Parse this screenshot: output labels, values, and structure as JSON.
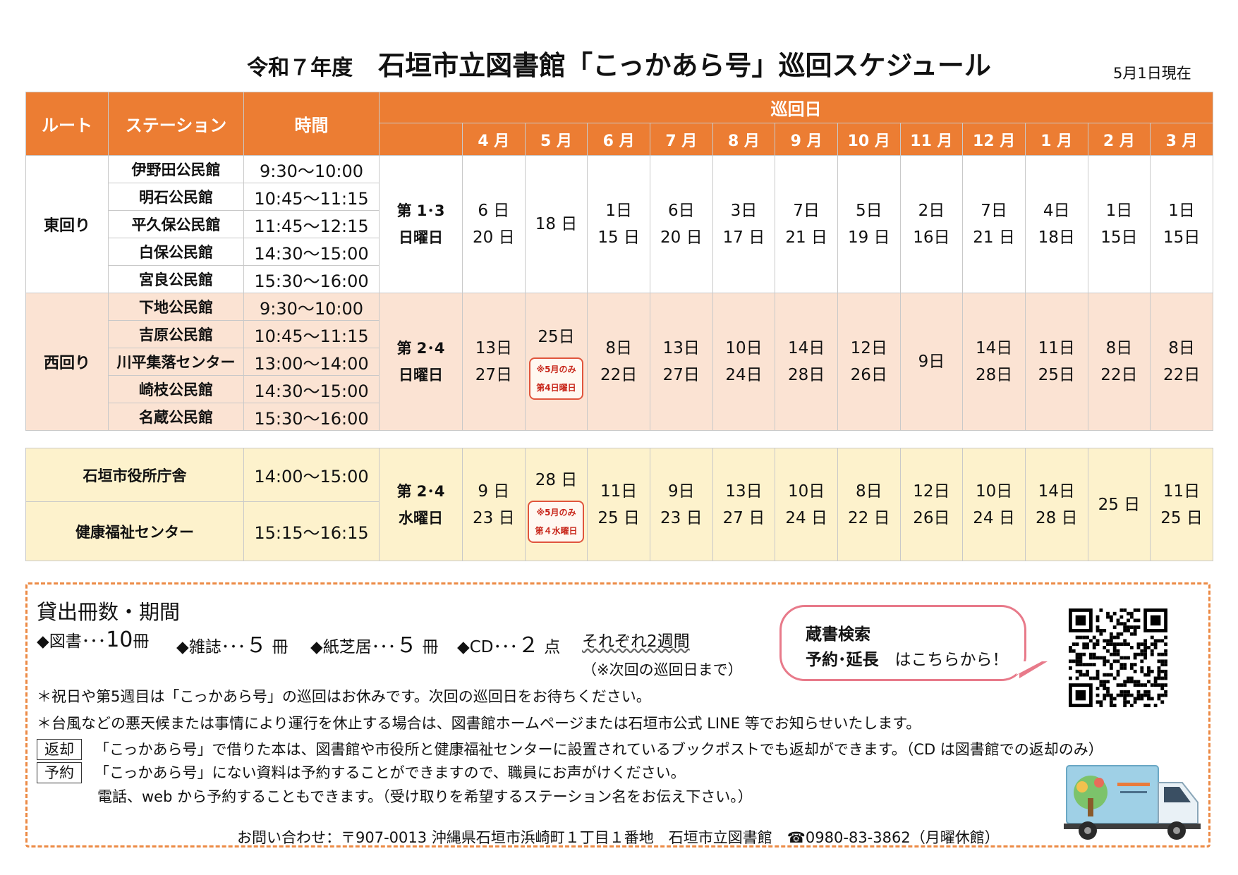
{
  "header": {
    "year": "令和７年度",
    "title": "石垣市立図書館「こっかあら号」巡回スケジュール",
    "as_of": "5月1日現在"
  },
  "table_header": {
    "route": "ルート",
    "station": "ステーション",
    "time": "時間",
    "visit_days": "巡回日",
    "months": [
      "4 月",
      "5 月",
      "6 月",
      "7 月",
      "8 月",
      "9 月",
      "10 月",
      "11 月",
      "12 月",
      "1 月",
      "2 月",
      "3 月"
    ]
  },
  "east": {
    "route": "東回り",
    "week": [
      "第 1･3",
      "日曜日"
    ],
    "stations": [
      {
        "name": "伊野田公民館",
        "time": "9:30～10:00"
      },
      {
        "name": "明石公民館",
        "time": "10:45～11:15"
      },
      {
        "name": "平久保公民館",
        "time": "11:45～12:15"
      },
      {
        "name": "白保公民館",
        "time": "14:30～15:00"
      },
      {
        "name": "宮良公民館",
        "time": "15:30～16:00"
      }
    ],
    "dates": [
      [
        "6 日",
        "20 日"
      ],
      [
        "18 日"
      ],
      [
        "1日",
        "15 日"
      ],
      [
        "6日",
        "20 日"
      ],
      [
        "3日",
        "17 日"
      ],
      [
        "7日",
        "21 日"
      ],
      [
        "5日",
        "19 日"
      ],
      [
        "2日",
        "16日"
      ],
      [
        "7日",
        "21 日"
      ],
      [
        "4日",
        "18日"
      ],
      [
        "1日",
        "15日"
      ],
      [
        "1日",
        "15日"
      ]
    ]
  },
  "west": {
    "route": "西回り",
    "week": [
      "第 2･4",
      "日曜日"
    ],
    "stations": [
      {
        "name": "下地公民館",
        "time": "9:30～10:00"
      },
      {
        "name": "吉原公民館",
        "time": "10:45～11:15"
      },
      {
        "name": "川平集落センター",
        "time": "13:00～14:00"
      },
      {
        "name": "崎枝公民館",
        "time": "14:30～15:00"
      },
      {
        "name": "名蔵公民館",
        "time": "15:30～16:00"
      }
    ],
    "dates": [
      [
        "13日",
        "27日"
      ],
      [
        "25日"
      ],
      [
        "8日",
        "22日"
      ],
      [
        "13日",
        "27日"
      ],
      [
        "10日",
        "24日"
      ],
      [
        "14日",
        "28日"
      ],
      [
        "12日",
        "26日"
      ],
      [
        "9日"
      ],
      [
        "14日",
        "28日"
      ],
      [
        "11日",
        "25日"
      ],
      [
        "8日",
        "22日"
      ],
      [
        "8日",
        "22日"
      ]
    ],
    "may_note": [
      "※5月のみ",
      "第4日曜日"
    ]
  },
  "office": {
    "week": [
      "第 2･4",
      "水曜日"
    ],
    "stations": [
      {
        "name": "石垣市役所庁舎",
        "time": "14:00～15:00"
      },
      {
        "name": "健康福祉センター",
        "time": "15:15～16:15"
      }
    ],
    "dates": [
      [
        "9 日",
        "23 日"
      ],
      [
        "28 日"
      ],
      [
        "11日",
        "25 日"
      ],
      [
        "9日",
        "23 日"
      ],
      [
        "13日",
        "27 日"
      ],
      [
        "10日",
        "24 日"
      ],
      [
        "8日",
        "22 日"
      ],
      [
        "12日",
        "26日"
      ],
      [
        "10日",
        "24 日"
      ],
      [
        "14日",
        "28 日"
      ],
      [
        "25 日"
      ],
      [
        "11日",
        "25 日"
      ]
    ],
    "may_note": [
      "※5月のみ",
      "第４水曜日"
    ]
  },
  "loan": {
    "title": "貸出冊数・期間",
    "books_label": "◆図書･･･",
    "books_value": "10",
    "books_unit": "冊",
    "magazines_label": "◆雑誌･･･",
    "magazines_value": "５",
    "magazines_unit": "冊",
    "kamishibai_label": "◆紙芝居･･･",
    "kamishibai_value": "５",
    "kamishibai_unit": "冊",
    "cd_label": "◆CD･･･",
    "cd_value": "２",
    "cd_unit": "点",
    "period": "それぞれ2週間",
    "period_note": "（※次回の巡回日まで）"
  },
  "notes": {
    "holiday": "＊祝日や第5週目は「こっかあら号」の巡回はお休みです。次回の巡回日をお待ちください。",
    "weather": "＊台風などの悪天候または事情により運行を休止する場合は、図書館ホームページまたは石垣市公式 LINE 等でお知らせいたします。",
    "return_label": "返却",
    "return_text": "「こっかあら号」で借りた本は、図書館や市役所と健康福祉センターに設置されているブックポストでも返却ができます。（CD は図書館での返却のみ）",
    "reserve_label": "予約",
    "reserve_text1": "「こっかあら号」にない資料は予約することができますので、職員にお声がけください。",
    "reserve_text2": "電話、web から予約することもできます。（受け取りを希望するステーション名をお伝え下さい。）",
    "contact": "お問い合わせ：〒907-0013 沖縄県石垣市浜崎町１丁目１番地　石垣市立図書館　☎0980-83-3862（月曜休館）"
  },
  "bubble": {
    "line1": "蔵書検索",
    "line2_bold": "予約･延長",
    "line2_rest": "はこちらから！"
  },
  "icons": {
    "qr": "qr-code-icon",
    "truck": "mobile-library-truck-icon"
  },
  "colors": {
    "header_orange": "#ec7d33",
    "west_row": "#fbe3d3",
    "office_row": "#fdf2cc",
    "dashed_border": "#ec8a45",
    "bubble_border": "#e87a8a"
  }
}
